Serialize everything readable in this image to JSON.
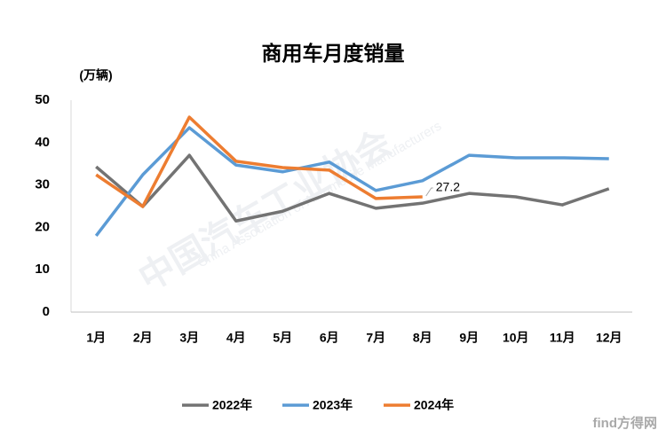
{
  "chart_data": {
    "type": "line",
    "title": "商用车月度销量",
    "ylabel": "(万辆)",
    "categories": [
      "1月",
      "2月",
      "3月",
      "4月",
      "5月",
      "6月",
      "7月",
      "8月",
      "9月",
      "10月",
      "11月",
      "12月"
    ],
    "series": [
      {
        "name": "2022年",
        "color": "#737373",
        "values": [
          34.3,
          24.9,
          37.0,
          21.5,
          23.8,
          28.0,
          24.5,
          25.7,
          28.0,
          27.2,
          25.3,
          29.1
        ]
      },
      {
        "name": "2023年",
        "color": "#5b9bd5",
        "values": [
          18.0,
          32.4,
          43.5,
          34.7,
          33.1,
          35.4,
          28.7,
          31.0,
          37.0,
          36.4,
          36.4,
          36.2
        ]
      },
      {
        "name": "2024年",
        "color": "#ed7d31",
        "values": [
          32.4,
          24.9,
          46.0,
          35.6,
          34.1,
          33.5,
          26.8,
          27.2,
          null,
          null,
          null,
          null
        ]
      }
    ],
    "ylim": [
      0,
      50
    ],
    "yticks": [
      0,
      10,
      20,
      30,
      40,
      50
    ],
    "grid": false,
    "legend": "bottom",
    "annotations": [
      "中国汽车工业协会",
      "China Association of Automobile Manufacturers",
      "find方得网"
    ]
  }
}
